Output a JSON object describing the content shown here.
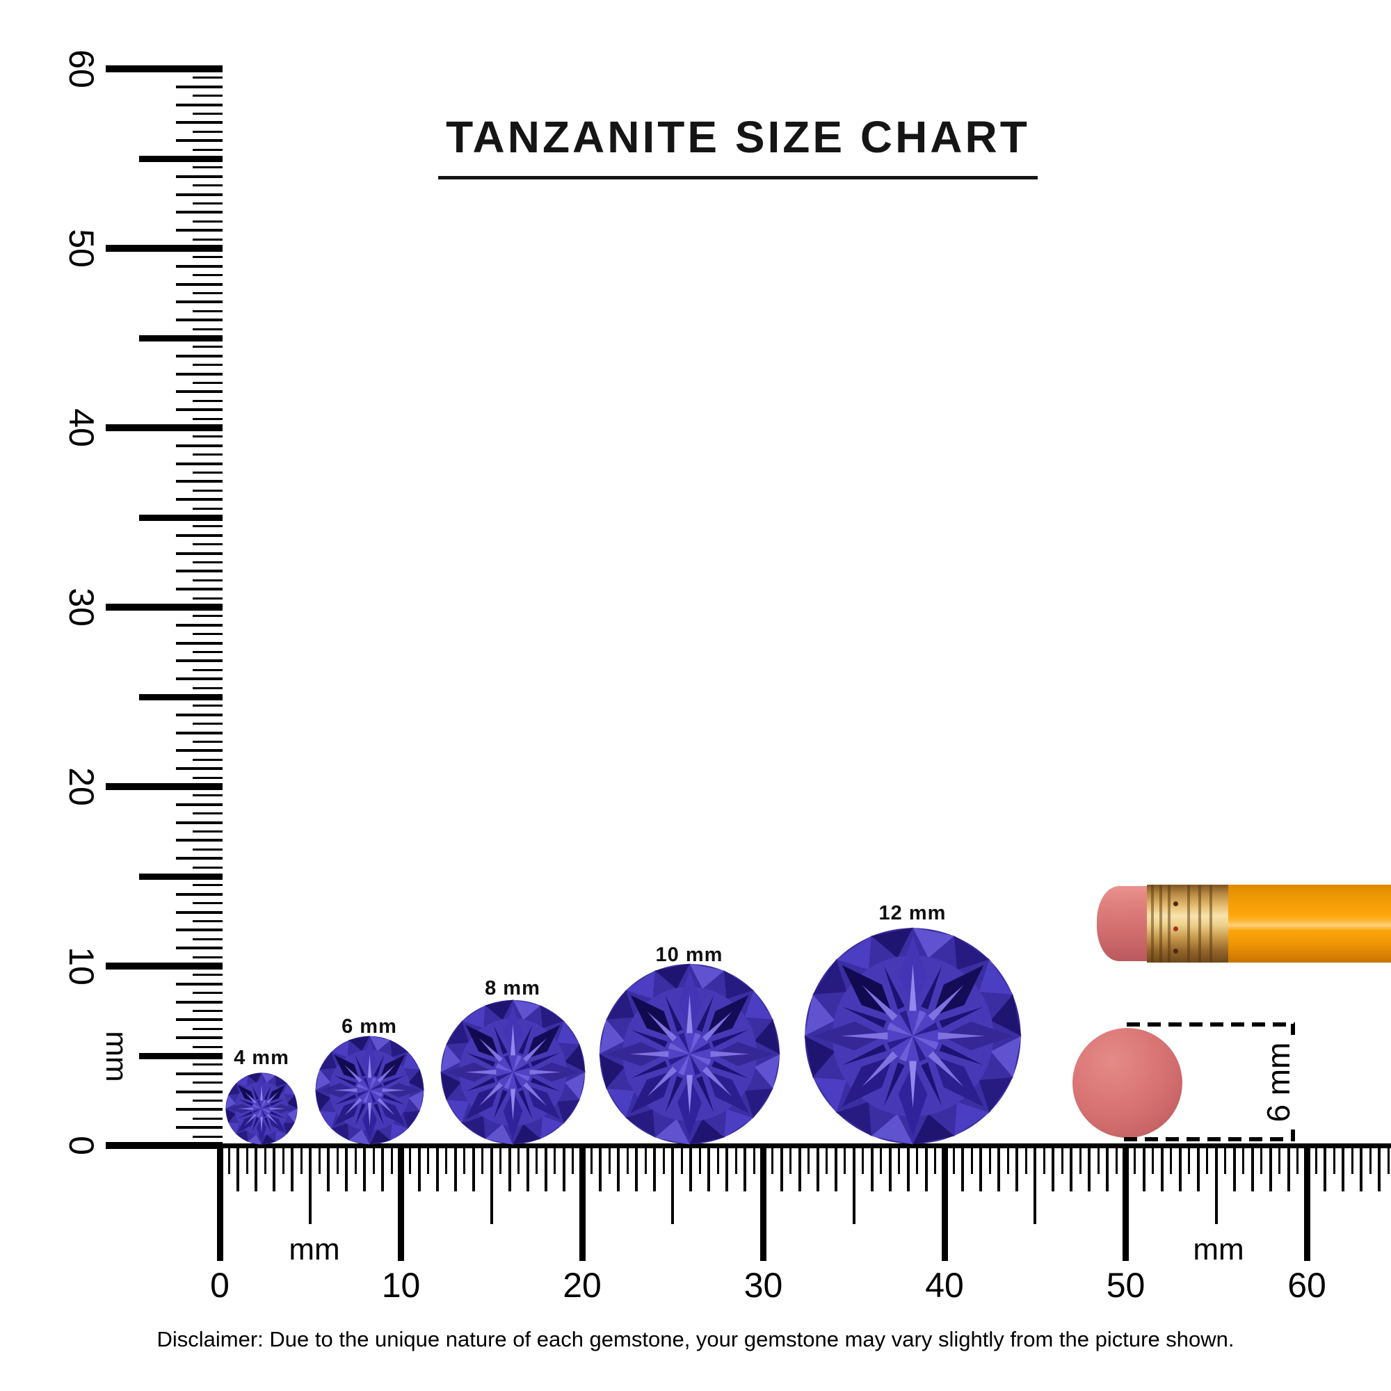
{
  "title": {
    "text": "TANZANITE SIZE CHART"
  },
  "gems": [
    {
      "label": "4 mm",
      "size_mm": 4
    },
    {
      "label": "6 mm",
      "size_mm": 6
    },
    {
      "label": "8 mm",
      "size_mm": 8
    },
    {
      "label": "10 mm",
      "size_mm": 10
    },
    {
      "label": "12 mm",
      "size_mm": 12
    }
  ],
  "rulers": {
    "unit_label": "mm",
    "vertical": {
      "min_mm": 0,
      "max_mm": 60,
      "tick_step_mm": 0.5,
      "labels": [
        "0",
        "10",
        "20",
        "30",
        "40",
        "50",
        "60"
      ]
    },
    "horizontal": {
      "min_mm": 0,
      "max_mm": 60,
      "tick_step_mm": 0.5,
      "labels": [
        "0",
        "10",
        "20",
        "30",
        "40",
        "50",
        "60"
      ]
    }
  },
  "eraser_measure": {
    "label": "6 mm",
    "diameter_mm": 6
  },
  "disclaimer": "Disclaimer: Due to the unique nature of each gemstone, your gemstone may vary slightly from the picture shown.",
  "colors": {
    "ink": "#000000",
    "title_ink": "#151515",
    "eraser_pink": "#d06c6d",
    "pencil_orange": "#fca50a",
    "ferrule_gold": "#e8c174",
    "gem_palette": {
      "base": "#3b2da2",
      "ring": "#4739b6",
      "rim": [
        "#6053d0",
        "#271a80",
        "#4c3ec2",
        "#1f1470"
      ],
      "kites": [
        "#352896",
        "#2b1e8e",
        "#30229a",
        "#281b88",
        "#352896",
        "#120a50",
        "#4335b5",
        "#150c58"
      ],
      "deep": "#1d1272",
      "arm": "#8172e2",
      "arm_bright": "#9487ec",
      "table": "#5042c4",
      "table_star_dark": "#2c1d8e",
      "table_star_light": "#6d5eda"
    }
  }
}
